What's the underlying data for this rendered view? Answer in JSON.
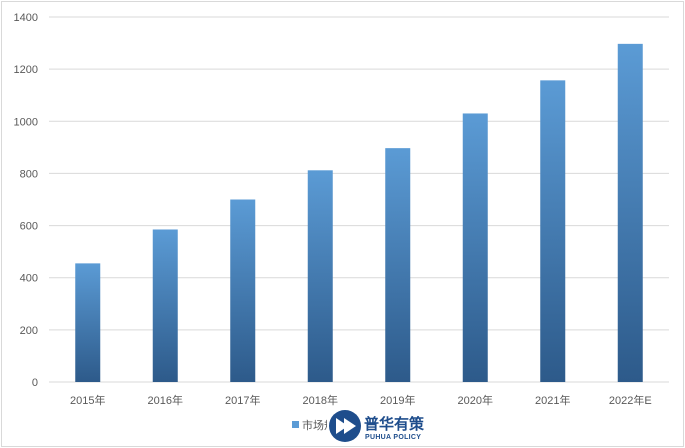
{
  "chart_data": {
    "type": "bar",
    "categories": [
      "2015年",
      "2016年",
      "2017年",
      "2018年",
      "2019年",
      "2020年",
      "2021年",
      "2022年E"
    ],
    "series": [
      {
        "name": "市场规模（亿元）",
        "values": [
          455,
          585,
          700,
          812,
          897,
          1030,
          1157,
          1297
        ]
      }
    ],
    "ylim": [
      0,
      1400
    ],
    "yticks": [
      0,
      200,
      400,
      600,
      800,
      1000,
      1200,
      1400
    ],
    "grid": true,
    "legend": "bottom-center",
    "colors": {
      "bar_top": "#5b9bd5",
      "bar_bottom": "#2d5a8a",
      "grid": "#d9d9d9"
    }
  },
  "watermark": {
    "text_cn": "普华有策",
    "text_en": "PUHUA POLICY",
    "color": "#1e4d8c"
  }
}
